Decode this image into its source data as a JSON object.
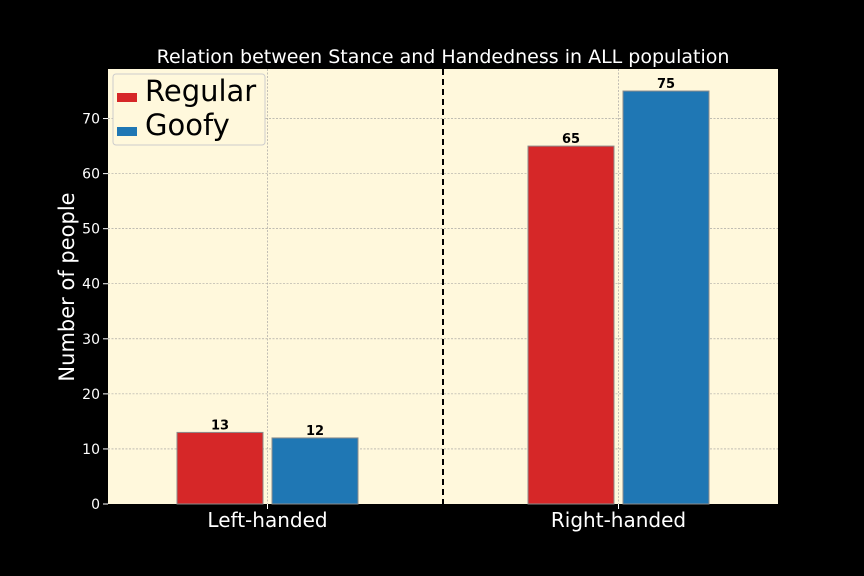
{
  "chart_data": {
    "type": "bar",
    "title": "Relation between Stance and Handedness in ALL population",
    "xlabel": "",
    "ylabel": "Number of people",
    "categories": [
      "Left-handed",
      "Right-handed"
    ],
    "series": [
      {
        "name": "Regular",
        "values": [
          13,
          65
        ],
        "color": "#d62728"
      },
      {
        "name": "Goofy",
        "values": [
          12,
          75
        ],
        "color": "#1f77b4"
      }
    ],
    "ylim": [
      0,
      79
    ],
    "yticks": [
      0,
      10,
      20,
      30,
      40,
      50,
      60,
      70
    ],
    "grid": true,
    "legend_position": "top-left",
    "divider": "dashed vertical line between categories",
    "colors": {
      "page_background": "#000000",
      "plot_background": "#fff8dc",
      "text": "#ffffff",
      "label_text": "#000000",
      "grid": "#999999"
    }
  }
}
